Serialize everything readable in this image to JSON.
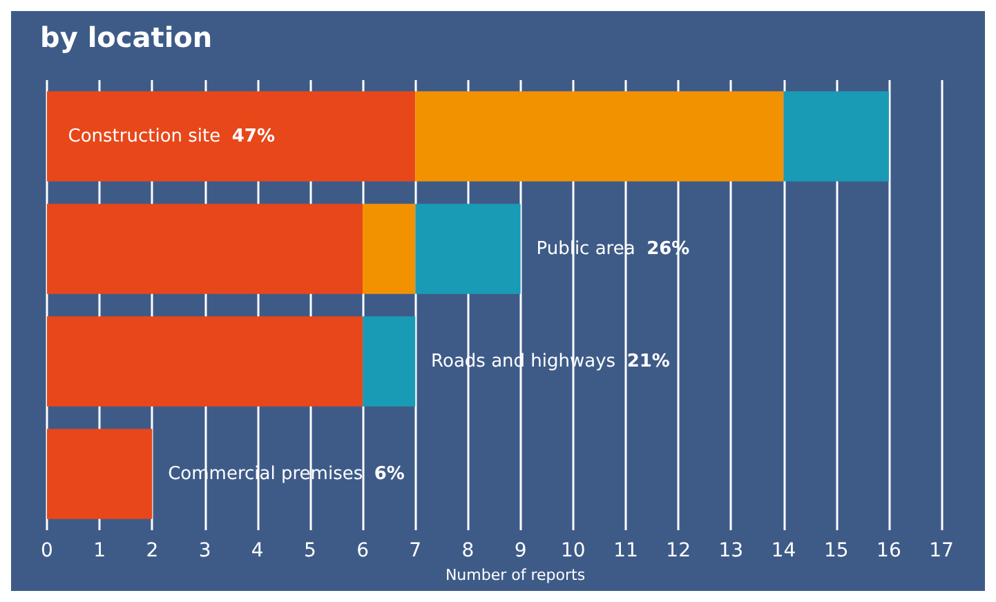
{
  "chart_data": {
    "type": "bar",
    "orientation": "horizontal",
    "stacked": true,
    "title": "by location",
    "xlabel": "Number of reports",
    "categories": [
      "Construction site",
      "Public area",
      "Roads and highways",
      "Commercial premises"
    ],
    "series": [
      {
        "color": "#e8471a",
        "values": [
          7,
          6,
          6,
          2
        ]
      },
      {
        "color": "#f39200",
        "values": [
          7,
          1,
          0,
          0
        ]
      },
      {
        "color": "#1a9bb5",
        "values": [
          2,
          2,
          1,
          0
        ]
      }
    ],
    "annotations": [
      "47%",
      "26%",
      "21%",
      "6%"
    ],
    "xlim": [
      0,
      17.8
    ],
    "xticks": [
      0,
      1,
      2,
      3,
      4,
      5,
      6,
      7,
      8,
      9,
      10,
      11,
      12,
      13,
      14,
      15,
      16,
      17
    ],
    "grid": "x",
    "tick_labels": "x"
  }
}
